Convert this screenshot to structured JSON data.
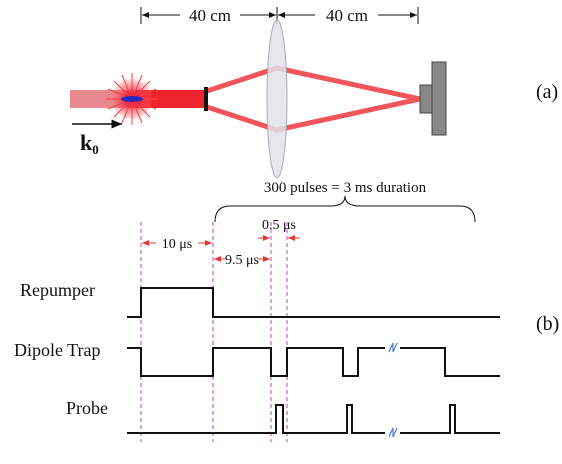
{
  "panel_a": {
    "distance_left": "40 cm",
    "distance_right": "40 cm",
    "label": "(a)",
    "wavevector": {
      "symbol": "k",
      "subscript": "0"
    }
  },
  "panel_b": {
    "pulse_train": "300 pulses = 3 ms duration",
    "short_interval": "0.5 μs",
    "first_interval": "10 μs",
    "second_interval": "9.5 μs",
    "channels": [
      "Repumper",
      "Dipole Trap",
      "Probe"
    ],
    "label": "(b)"
  }
}
